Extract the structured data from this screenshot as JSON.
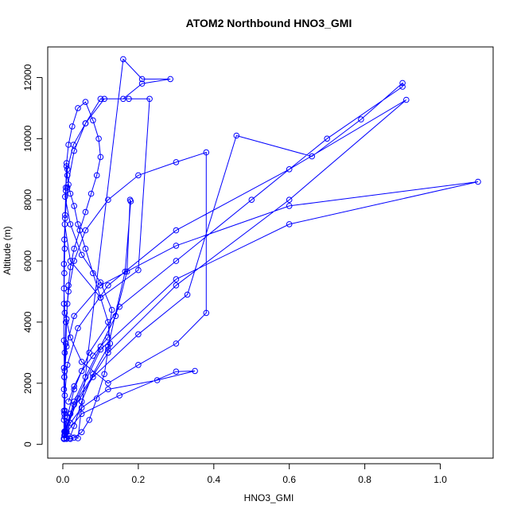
{
  "chart_data": {
    "type": "line",
    "title": "ATOM2 Northbound HNO3_GMI",
    "xlabel": "HNO3_GMI",
    "ylabel": "Altitude (m)",
    "xlim": [
      -0.04,
      1.14
    ],
    "ylim": [
      -450,
      13000
    ],
    "xticks": [
      0.0,
      0.2,
      0.4,
      0.6,
      0.8,
      1.0
    ],
    "xtick_labels": [
      "0.0",
      "0.2",
      "0.4",
      "0.6",
      "0.8",
      "1.0"
    ],
    "yticks": [
      0,
      2000,
      4000,
      6000,
      8000,
      10000,
      12000
    ],
    "ytick_labels": [
      "0",
      "2000",
      "4000",
      "6000",
      "8000",
      "10000",
      "12000"
    ],
    "grid": false,
    "series_color": "#0000ff",
    "marker": "open-circle",
    "series": [
      {
        "x": [
          0.003,
          0.004,
          0.006,
          0.005,
          0.008,
          0.01,
          0.012,
          0.015,
          0.02,
          0.03,
          0.045,
          0.06,
          0.075,
          0.09,
          0.1,
          0.095,
          0.08,
          0.06,
          0.04,
          0.025,
          0.015,
          0.01,
          0.008,
          0.006,
          0.005,
          0.004,
          0.003,
          0.003,
          0.004,
          0.005,
          0.01,
          0.02,
          0.03,
          0.05,
          0.07,
          0.09,
          0.11,
          0.12,
          0.125,
          0.12,
          0.1,
          0.08,
          0.06,
          0.04,
          0.03,
          0.02,
          0.015,
          0.012,
          0.01,
          0.008,
          0.006,
          0.004,
          0.003,
          0.003,
          0.005,
          0.02,
          0.05,
          0.12,
          0.2,
          0.3,
          0.38,
          0.38,
          0.3,
          0.2,
          0.12,
          0.06,
          0.03,
          0.015,
          0.008,
          0.005,
          0.003,
          0.003,
          0.004,
          0.006,
          0.01,
          0.018,
          0.03,
          0.05,
          0.08,
          0.12,
          0.165,
          0.18,
          0.178,
          0.17,
          0.14,
          0.1,
          0.06,
          0.03,
          0.012,
          0.005,
          0.003,
          0.004,
          0.02,
          0.08,
          0.2,
          0.33,
          0.46,
          0.66,
          0.79,
          0.9,
          0.9,
          0.7,
          0.5,
          0.3,
          0.15,
          0.07,
          0.03,
          0.012,
          0.005,
          0.003,
          0.003,
          0.01,
          0.05,
          0.15,
          0.3,
          0.35,
          0.25,
          0.12,
          0.05,
          0.02,
          0.006,
          0.004,
          0.01,
          0.04,
          0.12,
          0.3,
          0.6,
          0.91,
          0.6,
          0.3,
          0.12,
          0.04,
          0.012,
          0.005,
          0.003,
          0.003,
          0.008,
          0.03,
          0.1,
          0.3,
          0.6,
          1.1,
          0.6,
          0.3,
          0.1,
          0.03,
          0.01,
          0.004,
          0.003,
          0.01,
          0.04,
          0.16,
          0.21,
          0.285,
          0.21,
          0.16,
          0.1,
          0.06,
          0.03,
          0.012,
          0.005,
          0.02,
          0.1,
          0.2,
          0.23,
          0.175,
          0.11,
          0.06,
          0.028,
          0.012,
          0.006,
          0.02,
          0.05,
          0.1,
          0.13,
          0.12,
          0.08,
          0.05,
          0.03,
          0.015
        ],
        "y": [
          180,
          420,
          1100,
          2400,
          3300,
          4100,
          4600,
          5200,
          5800,
          6400,
          7000,
          7600,
          8200,
          8800,
          9400,
          10000,
          10600,
          11200,
          11000,
          10400,
          9800,
          9200,
          8400,
          7400,
          6400,
          5600,
          4600,
          3400,
          2200,
          900,
          200,
          180,
          220,
          400,
          800,
          1500,
          2300,
          3100,
          3300,
          4000,
          4800,
          5600,
          6400,
          7200,
          7800,
          8200,
          8500,
          8800,
          9100,
          8300,
          7500,
          6700,
          5900,
          5100,
          4300,
          3500,
          2700,
          2000,
          2600,
          3300,
          4300,
          9550,
          9230,
          8800,
          8000,
          7000,
          6000,
          5000,
          4000,
          3000,
          2500,
          1800,
          1000,
          400,
          180,
          200,
          600,
          1400,
          2300,
          3200,
          5650,
          7950,
          8000,
          5650,
          4200,
          3200,
          2200,
          1400,
          700,
          300,
          180,
          300,
          1000,
          2200,
          3600,
          4900,
          10100,
          9420,
          10630,
          11820,
          11700,
          10000,
          8000,
          6000,
          4500,
          3000,
          1800,
          900,
          400,
          200,
          180,
          400,
          1000,
          1600,
          2380,
          2400,
          2100,
          1800,
          1200,
          700,
          300,
          180,
          500,
          1500,
          3000,
          5200,
          8000,
          11270,
          9000,
          7000,
          5200,
          3800,
          2600,
          1600,
          800,
          200,
          400,
          1300,
          3100,
          5400,
          7200,
          8590,
          7800,
          6500,
          5200,
          4200,
          3200,
          2200,
          1100,
          400,
          200,
          12600,
          11950,
          11950,
          11800,
          11300,
          11300,
          10500,
          9600,
          8400,
          7200,
          6000,
          4800,
          5700,
          11300,
          11300,
          11300,
          10500,
          9800,
          9000,
          8100,
          7200,
          6200,
          5300,
          4400,
          3500,
          2900,
          2400,
          1900,
          1400
        ]
      }
    ]
  }
}
